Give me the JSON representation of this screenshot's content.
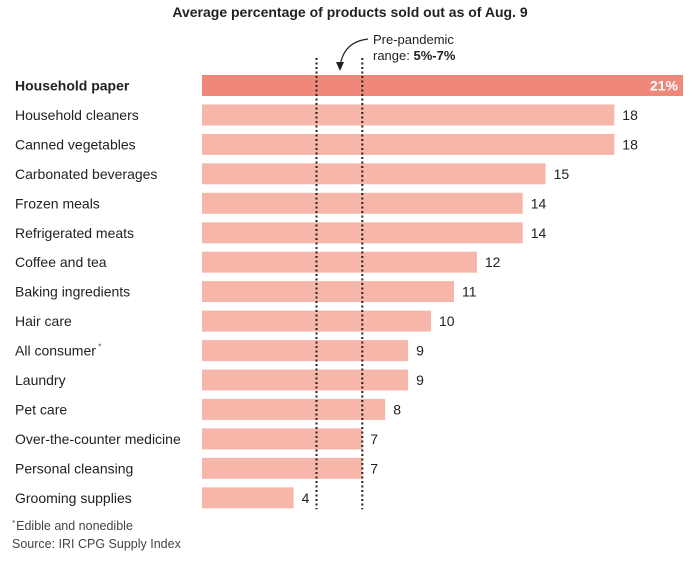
{
  "chart_data": {
    "type": "bar",
    "orientation": "horizontal",
    "title": "Average percentage of products sold out as of Aug. 9",
    "xlabel": "",
    "ylabel": "",
    "categories": [
      "Household paper",
      "Household cleaners",
      "Canned vegetables",
      "Carbonated beverages",
      "Frozen meals",
      "Refrigerated meats",
      "Coffee and tea",
      "Baking ingredients",
      "Hair care",
      "All consumer",
      "Laundry",
      "Pet care",
      "Over-the-counter medicine",
      "Personal cleansing",
      "Grooming supplies"
    ],
    "values": [
      21,
      18,
      18,
      15,
      14,
      14,
      12,
      11,
      10,
      9,
      9,
      8,
      7,
      7,
      4
    ],
    "value_labels": [
      "21%",
      "18",
      "18",
      "15",
      "14",
      "14",
      "12",
      "11",
      "10",
      "9",
      "9",
      "8",
      "7",
      "7",
      "4"
    ],
    "xlim": [
      0,
      21
    ],
    "highlight_category": "Household paper",
    "label_markers": {
      "All consumer": "*"
    },
    "grid": false,
    "reference_range": {
      "from": 5,
      "to": 7,
      "label_line1": "Pre-pandemic",
      "label_line2_prefix": "range: ",
      "label_line2_value": "5%-7%"
    },
    "colors": {
      "highlight_bar": "#f0887a",
      "bar": "#f7b6aa",
      "highlight_label": "#ffffff",
      "reference_line": "#222222"
    }
  },
  "footnote": {
    "marker": "*",
    "text": "Edible and nonedible",
    "source": "Source: IRI CPG Supply Index"
  }
}
